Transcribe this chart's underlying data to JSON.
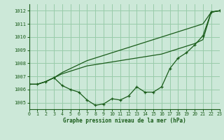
{
  "title": "Graphe pression niveau de la mer (hPa)",
  "background_color": "#cce8d8",
  "grid_color": "#99ccaa",
  "line_color": "#1a5c1a",
  "xlim": [
    0,
    23
  ],
  "ylim": [
    1004.5,
    1012.5
  ],
  "yticks": [
    1005,
    1006,
    1007,
    1008,
    1009,
    1010,
    1011,
    1012
  ],
  "xticks": [
    0,
    1,
    2,
    3,
    4,
    5,
    6,
    7,
    8,
    9,
    10,
    11,
    12,
    13,
    14,
    15,
    16,
    17,
    18,
    19,
    20,
    21,
    22,
    23
  ],
  "series_wavy": [
    1006.4,
    1006.4,
    1006.6,
    1006.9,
    1006.3,
    1006.0,
    1005.8,
    1005.2,
    1004.8,
    1004.9,
    1005.3,
    1005.2,
    1005.5,
    1006.2,
    1005.8,
    1005.8,
    1006.2,
    1007.6,
    1008.4,
    1008.8,
    1009.4,
    1010.1,
    1011.9,
    1012.0
  ],
  "series_mid": [
    1006.4,
    1006.4,
    1006.6,
    1006.9,
    1007.2,
    1007.4,
    1007.6,
    1007.8,
    1007.9,
    1008.0,
    1008.1,
    1008.2,
    1008.3,
    1008.4,
    1008.5,
    1008.6,
    1008.7,
    1008.9,
    1009.1,
    1009.3,
    1009.5,
    1009.8,
    1011.9,
    1012.0
  ],
  "series_top": [
    1006.4,
    1006.4,
    1006.6,
    1006.9,
    1007.3,
    1007.6,
    1007.9,
    1008.2,
    1008.4,
    1008.6,
    1008.8,
    1009.0,
    1009.2,
    1009.4,
    1009.6,
    1009.8,
    1010.0,
    1010.2,
    1010.4,
    1010.6,
    1010.8,
    1011.0,
    1011.9,
    1012.0
  ]
}
